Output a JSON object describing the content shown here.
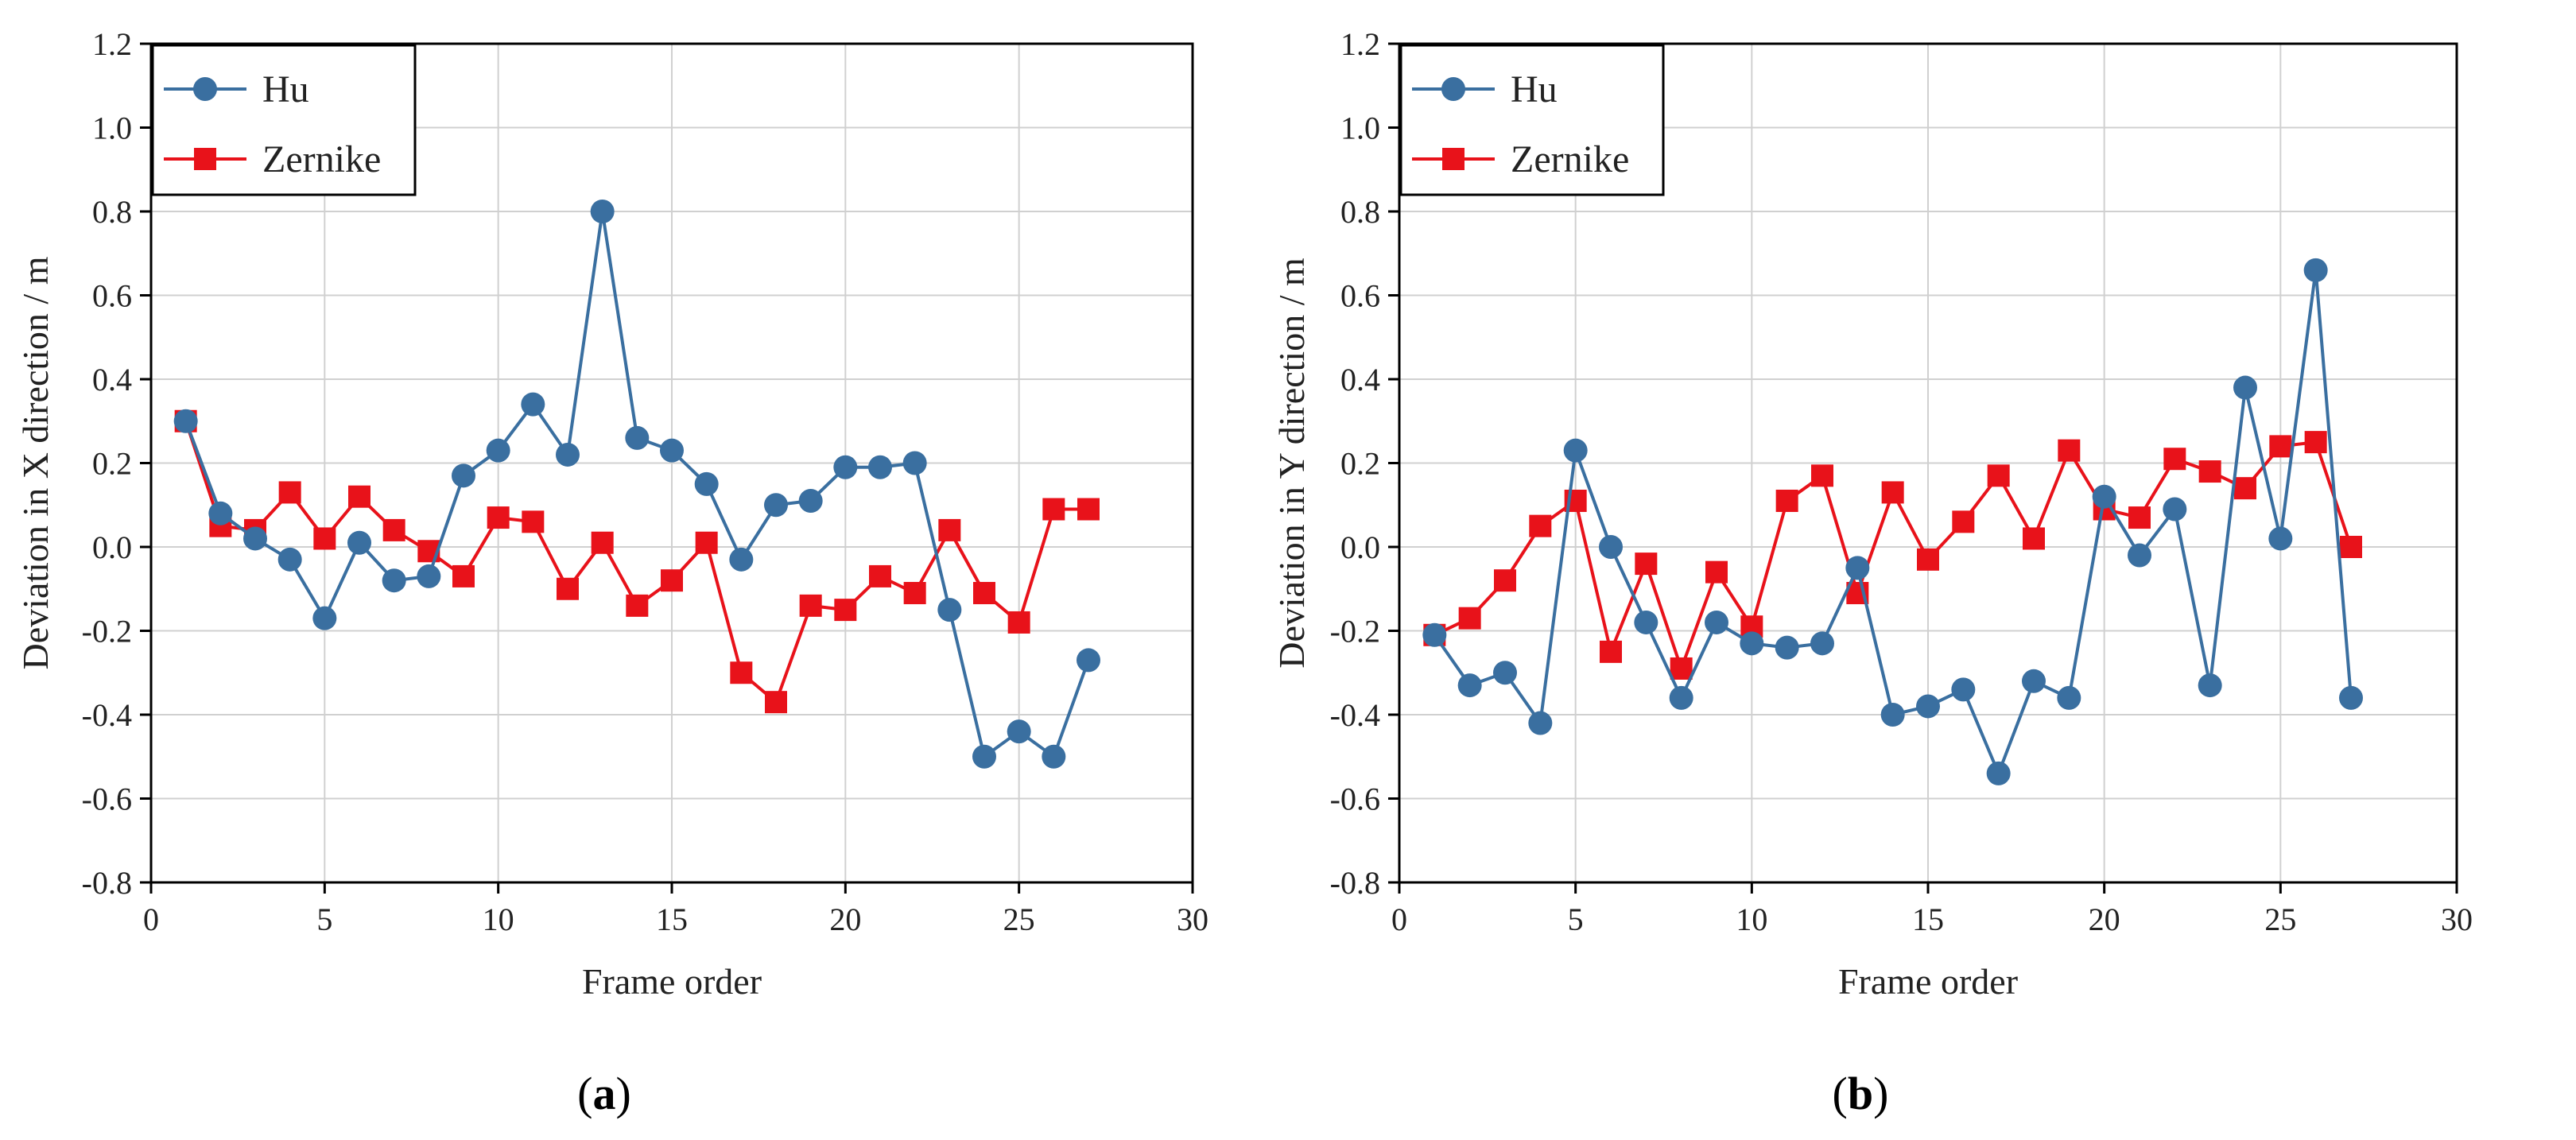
{
  "colors": {
    "hu": "#3a6fa0",
    "zernike": "#e8121a"
  },
  "chart_data": [
    {
      "type": "line",
      "caption_letter": "a",
      "title": "",
      "xlabel": "Frame order",
      "ylabel": "Deviation in X direction / m",
      "xlim": [
        0,
        30
      ],
      "ylim": [
        -0.8,
        1.2
      ],
      "xticks": [
        "0",
        "5",
        "10",
        "15",
        "20",
        "25",
        "30"
      ],
      "yticks": [
        "-0.8",
        "-0.6",
        "-0.4",
        "-0.2",
        "0.0",
        "0.2",
        "0.4",
        "0.6",
        "0.8",
        "1.0",
        "1.2"
      ],
      "grid": true,
      "legend": "top-left",
      "x": [
        1,
        2,
        3,
        4,
        5,
        6,
        7,
        8,
        9,
        10,
        11,
        12,
        13,
        14,
        15,
        16,
        17,
        18,
        19,
        20,
        21,
        22,
        23,
        24,
        25,
        26,
        27
      ],
      "series": [
        {
          "name": "Hu",
          "marker": "circle",
          "color_key": "hu",
          "values": [
            0.3,
            0.08,
            0.02,
            -0.03,
            -0.17,
            0.01,
            -0.08,
            -0.07,
            0.17,
            0.23,
            0.34,
            0.22,
            0.8,
            0.26,
            0.23,
            0.15,
            -0.03,
            0.1,
            0.11,
            0.19,
            0.19,
            0.2,
            -0.15,
            -0.5,
            -0.44,
            -0.5,
            -0.27
          ]
        },
        {
          "name": "Zernike",
          "marker": "square",
          "color_key": "zernike",
          "values": [
            0.3,
            0.05,
            0.04,
            0.13,
            0.02,
            0.12,
            0.04,
            -0.01,
            -0.07,
            0.07,
            0.06,
            -0.1,
            0.01,
            -0.14,
            -0.08,
            0.01,
            -0.3,
            -0.37,
            -0.14,
            -0.15,
            -0.07,
            -0.11,
            0.04,
            -0.11,
            -0.18,
            0.09,
            0.09
          ]
        }
      ]
    },
    {
      "type": "line",
      "caption_letter": "b",
      "title": "",
      "xlabel": "Frame order",
      "ylabel": "Deviation in Y direction / m",
      "xlim": [
        0,
        30
      ],
      "ylim": [
        -0.8,
        1.2
      ],
      "xticks": [
        "0",
        "5",
        "10",
        "15",
        "20",
        "25",
        "30"
      ],
      "yticks": [
        "-0.8",
        "-0.6",
        "-0.4",
        "-0.2",
        "0.0",
        "0.2",
        "0.4",
        "0.6",
        "0.8",
        "1.0",
        "1.2"
      ],
      "grid": true,
      "legend": "top-left",
      "x": [
        1,
        2,
        3,
        4,
        5,
        6,
        7,
        8,
        9,
        10,
        11,
        12,
        13,
        14,
        15,
        16,
        17,
        18,
        19,
        20,
        21,
        22,
        23,
        24,
        25,
        26,
        27
      ],
      "series": [
        {
          "name": "Hu",
          "marker": "circle",
          "color_key": "hu",
          "values": [
            -0.21,
            -0.33,
            -0.3,
            -0.42,
            0.23,
            0.0,
            -0.18,
            -0.36,
            -0.18,
            -0.23,
            -0.24,
            -0.23,
            -0.05,
            -0.4,
            -0.38,
            -0.34,
            -0.54,
            -0.32,
            -0.36,
            0.12,
            -0.02,
            0.09,
            -0.33,
            0.38,
            0.02,
            0.66,
            -0.36
          ]
        },
        {
          "name": "Zernike",
          "marker": "square",
          "color_key": "zernike",
          "values": [
            -0.21,
            -0.17,
            -0.08,
            0.05,
            0.11,
            -0.25,
            -0.04,
            -0.29,
            -0.06,
            -0.19,
            0.11,
            0.17,
            -0.11,
            0.13,
            -0.03,
            0.06,
            0.17,
            0.02,
            0.23,
            0.09,
            0.07,
            0.21,
            0.18,
            0.14,
            0.24,
            0.25,
            0.0
          ]
        }
      ]
    }
  ]
}
